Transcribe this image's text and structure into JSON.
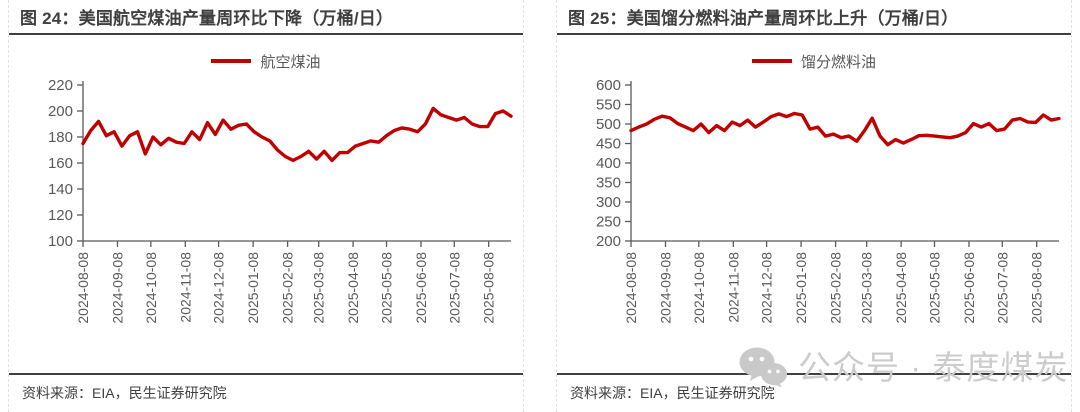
{
  "figures": [
    {
      "title": "图 24：美国航空煤油产量周环比下降（万桶/日）",
      "legend": "航空煤油",
      "source": "资料来源：EIA，民生证券研究院"
    },
    {
      "title": "图 25：美国馏分燃料油产量周环比上升（万桶/日）",
      "legend": "馏分燃料油",
      "source": "资料来源：EIA，民生证券研究院"
    }
  ],
  "watermark": {
    "icon": "wechat-icon",
    "text": "公众号 · 泰度煤炭"
  },
  "colors": {
    "line": "#c00000",
    "axis": "#595959",
    "title_text": "#3f3f3f",
    "rule": "#404040",
    "watermark": "#cccccc"
  },
  "chart_data": [
    {
      "type": "line",
      "title": "图 24：美国航空煤油产量周环比下降（万桶/日）",
      "xlabel": "",
      "ylabel": "",
      "ylim": [
        100,
        220
      ],
      "yticks": [
        100,
        120,
        140,
        160,
        180,
        200,
        220
      ],
      "grid": false,
      "legend_position": "top",
      "x_tick_labels": [
        "2024-08-08",
        "2024-09-08",
        "2024-10-08",
        "2024-11-08",
        "2024-12-08",
        "2025-01-08",
        "2025-02-08",
        "2025-03-08",
        "2025-04-08",
        "2025-05-08",
        "2025-06-08",
        "2025-07-08",
        "2025-08-08"
      ],
      "tick_weeks": [
        0,
        4.43,
        8.71,
        13.14,
        17.43,
        21.86,
        26.29,
        30.29,
        34.71,
        39.0,
        43.43,
        47.71,
        52.14
      ],
      "x_unit": "week",
      "series": [
        {
          "name": "航空煤油",
          "values": [
            175,
            185,
            192,
            181,
            184,
            173,
            181,
            184,
            167,
            180,
            174,
            179,
            176,
            175,
            184,
            178,
            191,
            182,
            193,
            186,
            189,
            190,
            184,
            180,
            177,
            170,
            165,
            162,
            165,
            169,
            163,
            169,
            162,
            168,
            168,
            173,
            175,
            177,
            176,
            181,
            185,
            187,
            186,
            184,
            190,
            202,
            197,
            195,
            193,
            195,
            190,
            188,
            188,
            198,
            200,
            196
          ]
        }
      ]
    },
    {
      "type": "line",
      "title": "图 25：美国馏分燃料油产量周环比上升（万桶/日）",
      "xlabel": "",
      "ylabel": "",
      "ylim": [
        200,
        600
      ],
      "yticks": [
        200,
        250,
        300,
        350,
        400,
        450,
        500,
        550,
        600
      ],
      "grid": false,
      "legend_position": "top",
      "x_tick_labels": [
        "2024-08-08",
        "2024-09-08",
        "2024-10-08",
        "2024-11-08",
        "2024-12-08",
        "2025-01-08",
        "2025-02-08",
        "2025-03-08",
        "2025-04-08",
        "2025-05-08",
        "2025-06-08",
        "2025-07-08",
        "2025-08-08"
      ],
      "tick_weeks": [
        0,
        4.43,
        8.71,
        13.14,
        17.43,
        21.86,
        26.29,
        30.29,
        34.71,
        39.0,
        43.43,
        47.71,
        52.14
      ],
      "x_unit": "week",
      "series": [
        {
          "name": "馏分燃料油",
          "values": [
            483,
            492,
            500,
            512,
            520,
            516,
            501,
            492,
            483,
            500,
            478,
            496,
            483,
            505,
            496,
            510,
            492,
            505,
            519,
            526,
            519,
            527,
            523,
            487,
            492,
            469,
            474,
            465,
            469,
            456,
            483,
            515,
            469,
            447,
            460,
            451,
            460,
            470,
            471,
            469,
            467,
            465,
            469,
            478,
            501,
            492,
            501,
            483,
            487,
            510,
            514,
            505,
            504,
            523,
            510,
            514
          ]
        }
      ]
    }
  ]
}
